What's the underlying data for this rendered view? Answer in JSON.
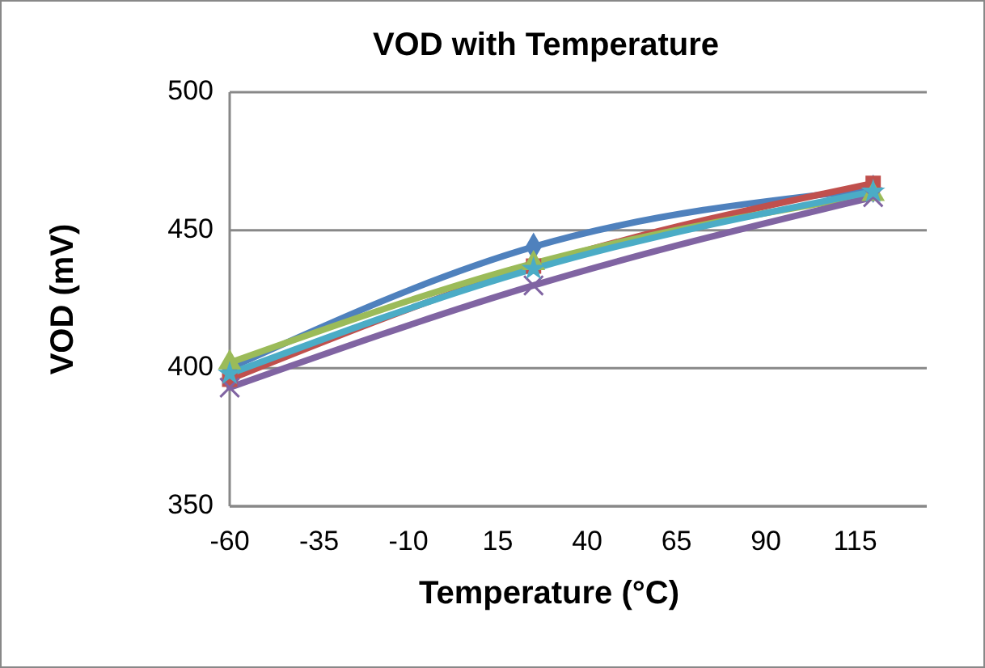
{
  "chart_data": {
    "type": "line",
    "title": "VOD with Temperature",
    "xlabel": "Temperature (°C)",
    "ylabel": "VOD (mV)",
    "x": [
      -60,
      25,
      120
    ],
    "xlim": [
      -60,
      135
    ],
    "xticks": [
      -60,
      -35,
      -10,
      15,
      40,
      65,
      90,
      115
    ],
    "ylim": [
      350,
      500
    ],
    "yticks": [
      350,
      400,
      450,
      500
    ],
    "grid": "y",
    "series": [
      {
        "color": "#4f81bd",
        "marker": "diamond",
        "values": [
          400,
          444,
          465
        ]
      },
      {
        "color": "#c0504d",
        "marker": "square",
        "values": [
          396,
          437,
          467
        ]
      },
      {
        "color": "#9bbb59",
        "marker": "triangle",
        "values": [
          402,
          438,
          463
        ]
      },
      {
        "color": "#8064a2",
        "marker": "cross",
        "values": [
          393,
          430,
          462
        ]
      },
      {
        "color": "#4bacc6",
        "marker": "star",
        "values": [
          398,
          436,
          464
        ]
      }
    ]
  }
}
